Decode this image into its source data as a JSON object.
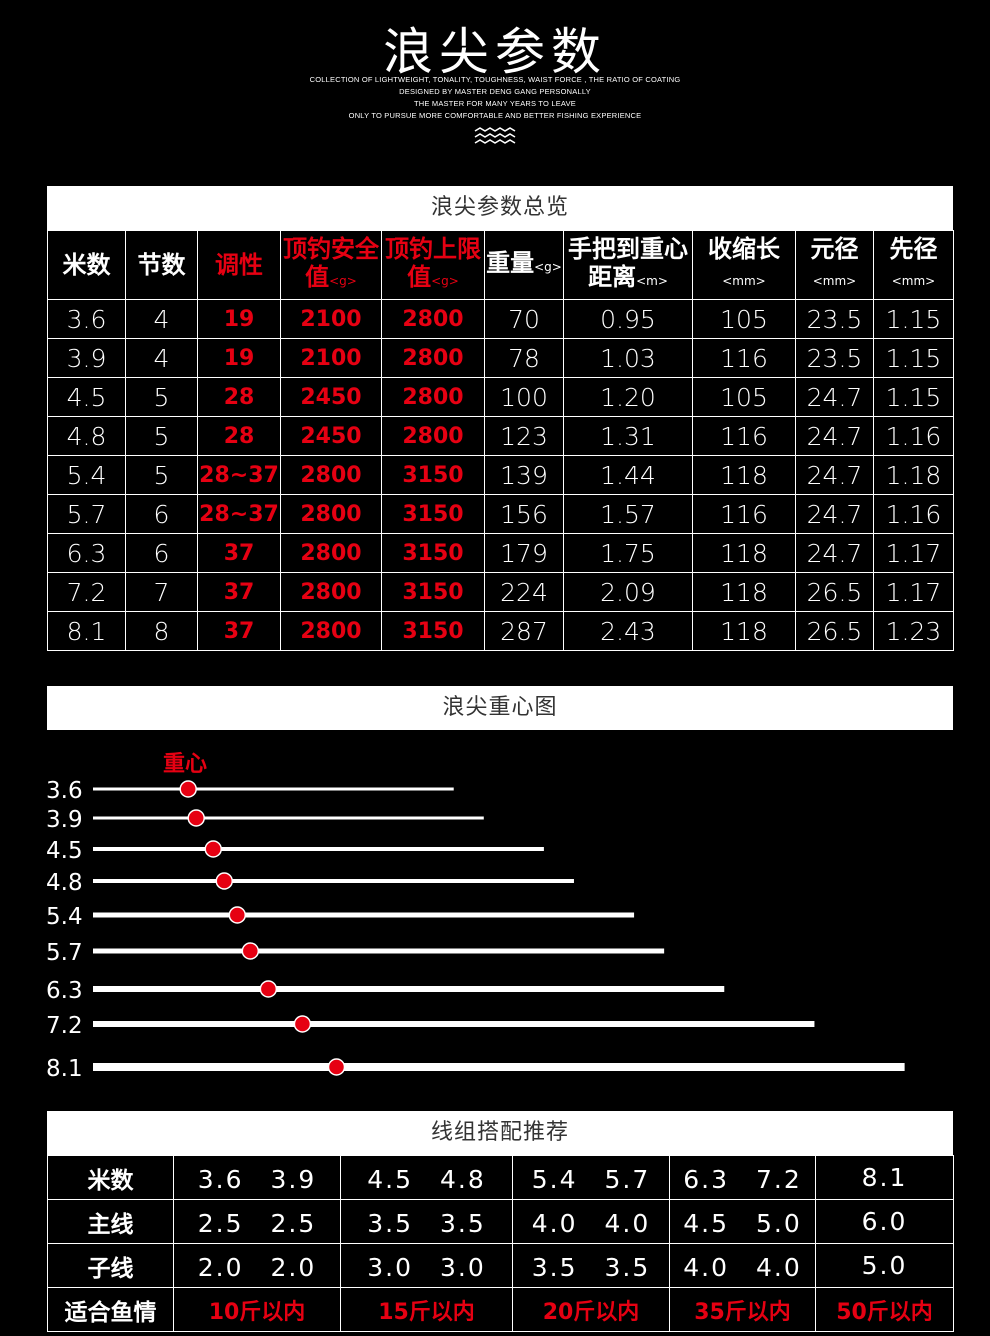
{
  "header": {
    "title": "浪尖参数",
    "lines": [
      "COLLECTION OF LIGHTWEIGHT, TONALITY, TOUGHNESS, WAIST FORCE , THE RATIO OF COATING",
      "DESIGNED BY MASTER DENG GANG PERSONALLY",
      "THE MASTER FOR MANY YEARS TO LEAVE",
      "ONLY TO PURSUE MORE COMFORTABLE AND BETTER FISHING EXPERIENCE"
    ]
  },
  "spec": {
    "title": "浪尖参数总览",
    "headers": [
      {
        "label": "米数",
        "unit": ""
      },
      {
        "label": "节数",
        "unit": ""
      },
      {
        "label": "调性",
        "unit": ""
      },
      {
        "label": "顶钓安全值",
        "unit": "<g>"
      },
      {
        "label": "顶钓上限值",
        "unit": "<g>"
      },
      {
        "label": "重量",
        "unit": "<g>"
      },
      {
        "label": "手把到重心距离",
        "unit": "<m>"
      },
      {
        "label": "收缩长",
        "unit": "<mm>"
      },
      {
        "label": "元径",
        "unit": "<mm>"
      },
      {
        "label": "先径",
        "unit": "<mm>"
      }
    ],
    "rows": [
      [
        "3.6",
        "4",
        "19",
        "2100",
        "2800",
        "70",
        "0.95",
        "105",
        "23.5",
        "1.15"
      ],
      [
        "3.9",
        "4",
        "19",
        "2100",
        "2800",
        "78",
        "1.03",
        "116",
        "23.5",
        "1.15"
      ],
      [
        "4.5",
        "5",
        "28",
        "2450",
        "2800",
        "100",
        "1.20",
        "105",
        "24.7",
        "1.15"
      ],
      [
        "4.8",
        "5",
        "28",
        "2450",
        "2800",
        "123",
        "1.31",
        "116",
        "24.7",
        "1.16"
      ],
      [
        "5.4",
        "5",
        "28~37",
        "2800",
        "3150",
        "139",
        "1.44",
        "118",
        "24.7",
        "1.18"
      ],
      [
        "5.7",
        "6",
        "28~37",
        "2800",
        "3150",
        "156",
        "1.57",
        "116",
        "24.7",
        "1.16"
      ],
      [
        "6.3",
        "6",
        "37",
        "2800",
        "3150",
        "179",
        "1.75",
        "118",
        "24.7",
        "1.17"
      ],
      [
        "7.2",
        "7",
        "37",
        "2800",
        "3150",
        "224",
        "2.09",
        "118",
        "26.5",
        "1.17"
      ],
      [
        "8.1",
        "8",
        "37",
        "2800",
        "3150",
        "287",
        "2.43",
        "118",
        "26.5",
        "1.23"
      ]
    ]
  },
  "balance": {
    "title": "浪尖重心图",
    "marker_label": "重心",
    "rods": [
      {
        "label": "3.6",
        "length": 3.6,
        "balance": 0.95
      },
      {
        "label": "3.9",
        "length": 3.9,
        "balance": 1.03
      },
      {
        "label": "4.5",
        "length": 4.5,
        "balance": 1.2
      },
      {
        "label": "4.8",
        "length": 4.8,
        "balance": 1.31
      },
      {
        "label": "5.4",
        "length": 5.4,
        "balance": 1.44
      },
      {
        "label": "5.7",
        "length": 5.7,
        "balance": 1.57
      },
      {
        "label": "6.3",
        "length": 6.3,
        "balance": 1.75
      },
      {
        "label": "7.2",
        "length": 7.2,
        "balance": 2.09
      },
      {
        "label": "8.1",
        "length": 8.1,
        "balance": 2.43
      }
    ],
    "dot_color": "#e60012"
  },
  "lines": {
    "title": "线组搭配推荐",
    "rows": [
      {
        "label": "米数",
        "cells": [
          "3.6　3.9",
          "4.5　4.8",
          "5.4　5.7",
          "6.3　7.2",
          "8.1"
        ],
        "red": false
      },
      {
        "label": "主线",
        "cells": [
          "2.5　2.5",
          "3.5　3.5",
          "4.0　4.0",
          "4.5　5.0",
          "6.0"
        ],
        "red": false
      },
      {
        "label": "子线",
        "cells": [
          "2.0　2.0",
          "3.0　3.0",
          "3.5　3.5",
          "4.0　4.0",
          "5.0"
        ],
        "red": false
      },
      {
        "label": "适合鱼情",
        "cells": [
          "10斤以内",
          "15斤以内",
          "20斤以内",
          "35斤以内",
          "50斤以内"
        ],
        "red": true
      }
    ]
  },
  "accent_color": "#e60012"
}
